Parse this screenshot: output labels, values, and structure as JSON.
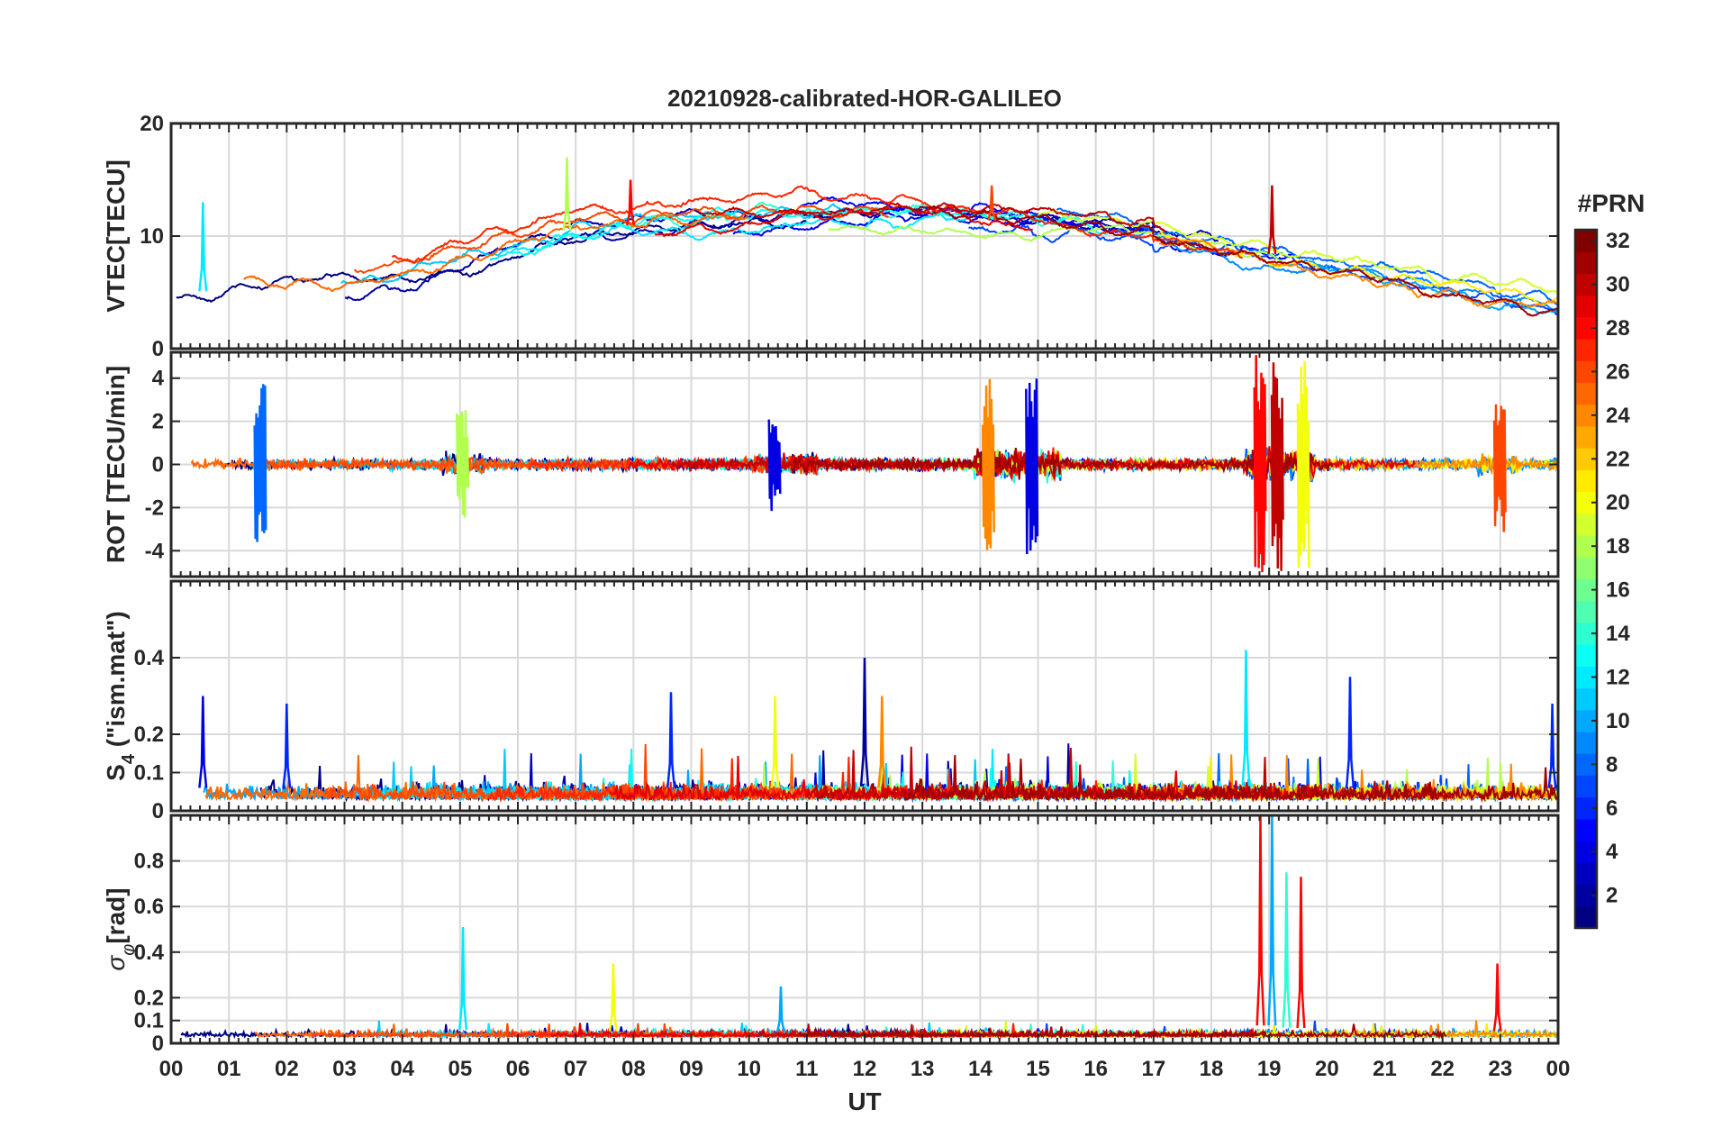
{
  "chart_data": {
    "type": "line",
    "title": "20210928-calibrated-HOR-GALILEO",
    "xlabel": "UT",
    "x_ticks": [
      "00",
      "01",
      "02",
      "03",
      "04",
      "05",
      "06",
      "07",
      "08",
      "09",
      "10",
      "11",
      "12",
      "13",
      "14",
      "15",
      "16",
      "17",
      "18",
      "19",
      "20",
      "21",
      "22",
      "23",
      "00"
    ],
    "xlim": [
      0,
      24
    ],
    "panels": [
      {
        "id": "vtec",
        "ylabel": "VTEC[TECU]",
        "ylim": [
          0,
          20
        ],
        "yticks": [
          0,
          10,
          20
        ],
        "ytick_labels": [
          "0",
          "10",
          "20"
        ],
        "series_summary": "VTEC for all Galileo PRNs, rising from ~4-6 TECU at 00 UT to ~10-13 TECU between 07 and 17 UT, decreasing to ~2-6 TECU near 24 UT",
        "peaks": [
          {
            "x": 0.55,
            "y": 13,
            "prn": 12
          },
          {
            "x": 6.85,
            "y": 17,
            "prn": 18
          },
          {
            "x": 7.95,
            "y": 15,
            "prn": 28
          },
          {
            "x": 14.2,
            "y": 14.5,
            "prn": 26
          },
          {
            "x": 19.05,
            "y": 14.5,
            "prn": 30
          }
        ]
      },
      {
        "id": "rot",
        "ylabel": "ROT [TECU/min]",
        "ylim": [
          -5.2,
          5.2
        ],
        "yticks": [
          -4,
          -2,
          0,
          2,
          4
        ],
        "ytick_labels": [
          "-4",
          "-2",
          "0",
          "2",
          "4"
        ],
        "series_summary": "ROT fluctuating around 0 with bursts near 05 UT, 10-11 UT, 14-15 UT, 18.7-19.6 UT and 22.5-23.2 UT",
        "bursts": [
          {
            "x": 1.55,
            "amp": 4.0,
            "prn": 8
          },
          {
            "x": 5.05,
            "amp": 2.6,
            "prn": 18
          },
          {
            "x": 10.45,
            "amp": 2.2,
            "prn": 4
          },
          {
            "x": 14.15,
            "amp": 4.0,
            "prn": 24
          },
          {
            "x": 14.9,
            "amp": 4.3,
            "prn": 4
          },
          {
            "x": 18.85,
            "amp": 5.2,
            "prn": 28
          },
          {
            "x": 19.15,
            "amp": 5.2,
            "prn": 30
          },
          {
            "x": 19.6,
            "amp": 4.9,
            "prn": 20
          },
          {
            "x": 23.0,
            "amp": 3.3,
            "prn": 26
          }
        ]
      },
      {
        "id": "s4",
        "ylabel": "S_4 (\"ism.mat\")",
        "ylim": [
          0,
          0.6
        ],
        "yticks": [
          0,
          0.1,
          0.2,
          0.4
        ],
        "ytick_labels": [
          "0",
          "0.1",
          "0.2",
          "0.4"
        ],
        "series_summary": "S4 mostly 0.02-0.15 with peaks",
        "peaks": [
          {
            "x": 0.55,
            "y": 0.3,
            "prn": 4
          },
          {
            "x": 2.0,
            "y": 0.28,
            "prn": 6
          },
          {
            "x": 8.65,
            "y": 0.31,
            "prn": 6
          },
          {
            "x": 10.45,
            "y": 0.3,
            "prn": 20
          },
          {
            "x": 12.0,
            "y": 0.4,
            "prn": 2
          },
          {
            "x": 12.3,
            "y": 0.3,
            "prn": 24
          },
          {
            "x": 18.6,
            "y": 0.42,
            "prn": 12
          },
          {
            "x": 20.4,
            "y": 0.35,
            "prn": 6
          },
          {
            "x": 23.9,
            "y": 0.28,
            "prn": 6
          }
        ]
      },
      {
        "id": "sigma_phi",
        "ylabel": "σ_φ[rad]",
        "ylim": [
          0,
          1.0
        ],
        "yticks": [
          0,
          0.1,
          0.2,
          0.4,
          0.6,
          0.8
        ],
        "ytick_labels": [
          "0",
          "0.1",
          "0.2",
          "0.4",
          "0.6",
          "0.8"
        ],
        "series_summary": "Phase scintillation mostly 0.02-0.1 rad with spikes",
        "peaks": [
          {
            "x": 5.05,
            "y": 0.51,
            "prn": 12
          },
          {
            "x": 7.65,
            "y": 0.35,
            "prn": 20
          },
          {
            "x": 10.55,
            "y": 0.25,
            "prn": 10
          },
          {
            "x": 18.85,
            "y": 1.0,
            "prn": 28
          },
          {
            "x": 19.05,
            "y": 1.0,
            "prn": 10
          },
          {
            "x": 19.3,
            "y": 0.75,
            "prn": 14
          },
          {
            "x": 19.55,
            "y": 0.73,
            "prn": 28
          },
          {
            "x": 22.95,
            "y": 0.35,
            "prn": 28
          }
        ]
      }
    ],
    "colorbar": {
      "title": "#PRN",
      "range": [
        1,
        32
      ],
      "tick_labels": [
        "2",
        "4",
        "6",
        "8",
        "10",
        "12",
        "14",
        "16",
        "18",
        "20",
        "22",
        "24",
        "26",
        "28",
        "30",
        "32"
      ],
      "colormap": "jet"
    }
  }
}
